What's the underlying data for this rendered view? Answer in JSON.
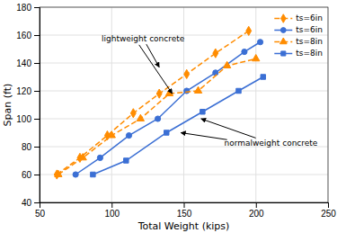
{
  "chart_data": {
    "type": "line",
    "xlabel": "Total Weight (kips)",
    "ylabel": "Span (ft)",
    "xlim": [
      50,
      250
    ],
    "ylim": [
      40,
      180
    ],
    "xticks": [
      50,
      100,
      150,
      200,
      250
    ],
    "yticks": [
      40,
      60,
      80,
      100,
      120,
      140,
      160,
      180
    ],
    "grid": true,
    "legend": "upper right",
    "series": [
      {
        "name": "ts=6in",
        "color": "#FF8C00",
        "line_style": "dashed",
        "marker": "diamond",
        "x": [
          62,
          78,
          97,
          115,
          133,
          152,
          172,
          195
        ],
        "values": [
          60,
          72,
          88,
          104,
          118,
          132,
          147,
          163
        ]
      },
      {
        "name": "ts=6in",
        "color": "#3B6FD4",
        "line_style": "solid",
        "marker": "circle",
        "x": [
          75,
          92,
          112,
          132,
          152,
          172,
          192,
          203
        ],
        "values": [
          60,
          72,
          88,
          100,
          120,
          133,
          148,
          155
        ]
      },
      {
        "name": "ts=8in",
        "color": "#FF8C00",
        "line_style": "dashed",
        "marker": "triangle",
        "x": [
          63,
          80,
          100,
          120,
          140,
          160,
          180,
          200
        ],
        "values": [
          60,
          72,
          88,
          100,
          118,
          120,
          138,
          143
        ]
      },
      {
        "name": "ts=8in",
        "color": "#3B6FD4",
        "line_style": "solid",
        "marker": "square",
        "x": [
          87,
          110,
          138,
          163,
          188,
          205
        ],
        "values": [
          60,
          70,
          90,
          105,
          120,
          130
        ]
      }
    ],
    "annotations": [
      {
        "text": "lightweight concrete",
        "x": 93,
        "y": 157,
        "arrows": [
          {
            "to": [
              133,
              137
            ]
          },
          {
            "from": [
              119,
              153
            ],
            "to": [
              142,
              118
            ]
          }
        ]
      },
      {
        "text": "normalweight concrete",
        "x": 178,
        "y": 82,
        "arrows": [
          {
            "to": [
              162,
              100
            ]
          },
          {
            "from": [
              180,
              85
            ],
            "to": [
              148,
              90
            ]
          }
        ]
      }
    ]
  }
}
